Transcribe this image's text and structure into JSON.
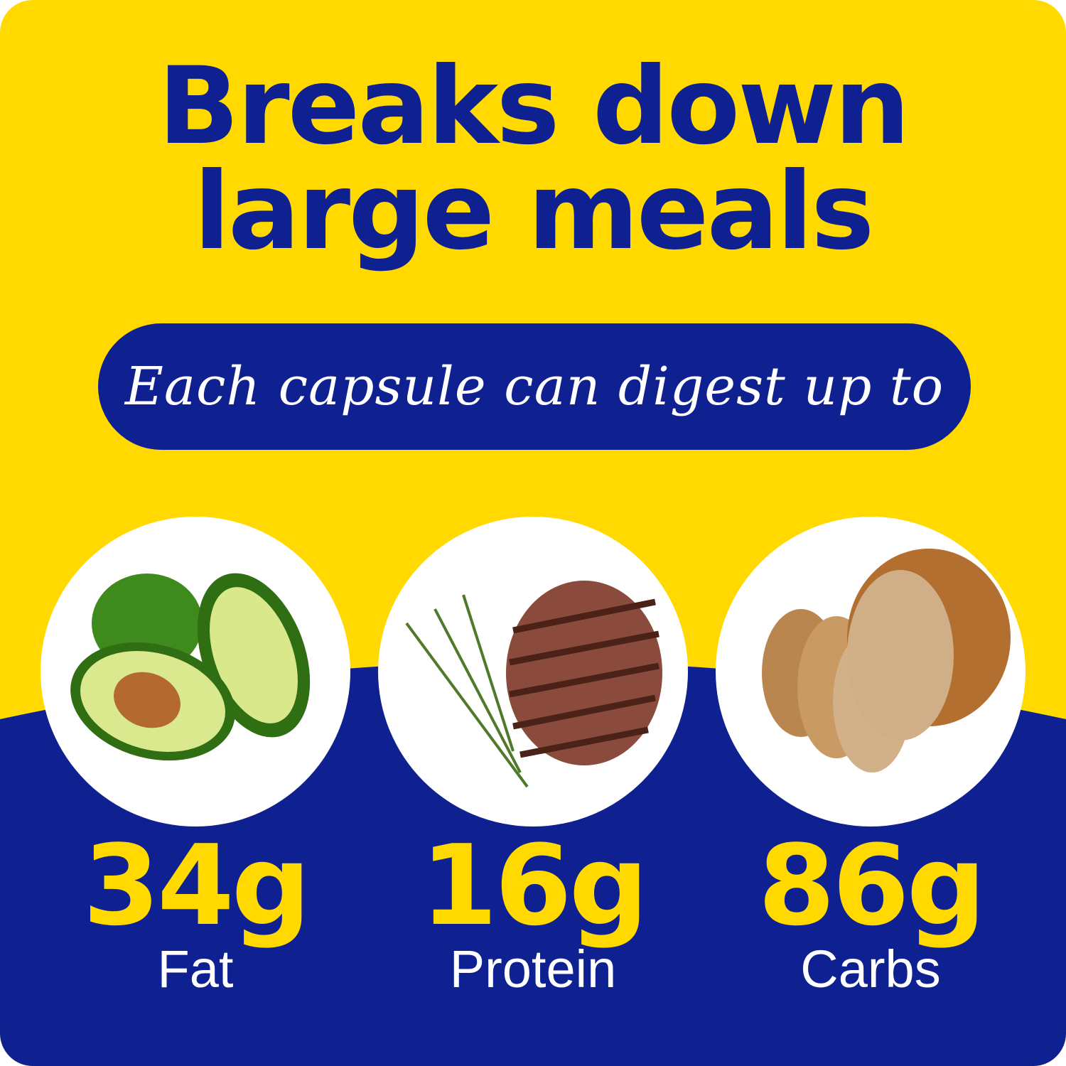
{
  "headline": {
    "line1": "Breaks down",
    "line2": "large meals"
  },
  "subheading": "Each capsule can digest up to",
  "nutrients": [
    {
      "value": "34g",
      "label": "Fat",
      "image": "avocado"
    },
    {
      "value": "16g",
      "label": "Protein",
      "image": "steak-with-rosemary"
    },
    {
      "value": "86g",
      "label": "Carbs",
      "image": "bread-loaf"
    }
  ],
  "colors": {
    "yellow": "#FFD900",
    "blue": "#0F2190",
    "white": "#FFFFFF"
  }
}
